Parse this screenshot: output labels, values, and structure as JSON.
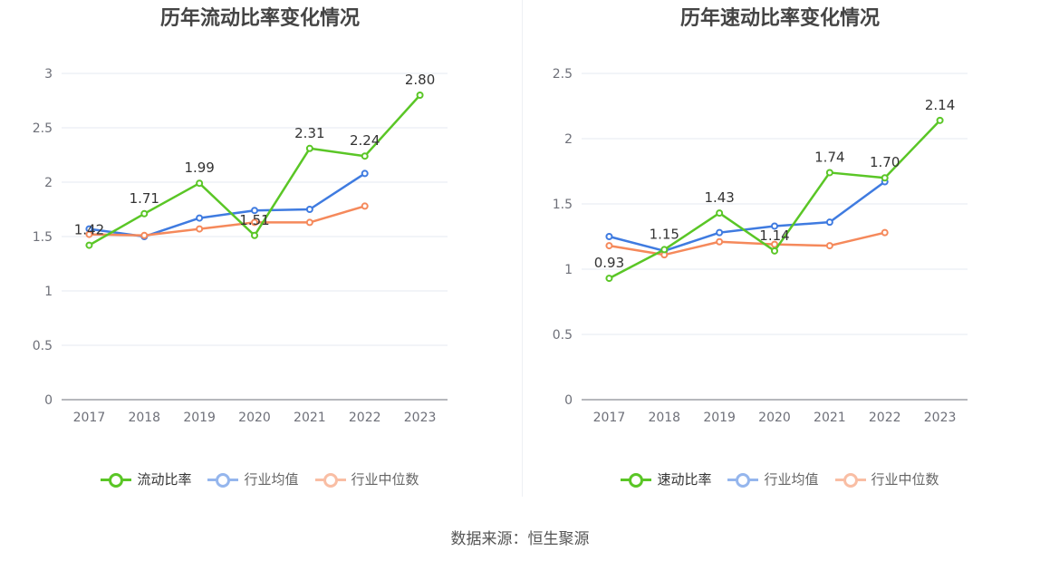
{
  "source_label": "数据来源：恒生聚源",
  "chart_data": [
    {
      "type": "line",
      "title": "历年流动比率变化情况",
      "x": [
        "2017",
        "2018",
        "2019",
        "2020",
        "2021",
        "2022",
        "2023"
      ],
      "ylim": [
        0,
        3
      ],
      "yticks": [
        0,
        0.5,
        1,
        1.5,
        2,
        2.5,
        3
      ],
      "grid": true,
      "legend_position": "bottom",
      "series": [
        {
          "name": "流动比率",
          "color": "#5ac626",
          "values": [
            1.42,
            1.71,
            1.99,
            1.51,
            2.31,
            2.24,
            2.8
          ],
          "labels": [
            "1.42",
            "1.71",
            "1.99",
            "1.51",
            "2.31",
            "2.24",
            "2.80"
          ]
        },
        {
          "name": "行业均值",
          "color": "#3f7be0",
          "values": [
            1.57,
            1.5,
            1.67,
            1.74,
            1.75,
            2.08,
            null
          ]
        },
        {
          "name": "行业中位数",
          "color": "#f5895b",
          "values": [
            1.52,
            1.51,
            1.57,
            1.63,
            1.63,
            1.78,
            null
          ]
        }
      ]
    },
    {
      "type": "line",
      "title": "历年速动比率变化情况",
      "x": [
        "2017",
        "2018",
        "2019",
        "2020",
        "2021",
        "2022",
        "2023"
      ],
      "ylim": [
        0,
        2.5
      ],
      "yticks": [
        0,
        0.5,
        1,
        1.5,
        2,
        2.5
      ],
      "grid": true,
      "legend_position": "bottom",
      "series": [
        {
          "name": "速动比率",
          "color": "#5ac626",
          "values": [
            0.93,
            1.15,
            1.43,
            1.14,
            1.74,
            1.7,
            2.14
          ],
          "labels": [
            "0.93",
            "1.15",
            "1.43",
            "1.14",
            "1.74",
            "1.70",
            "2.14"
          ]
        },
        {
          "name": "行业均值",
          "color": "#3f7be0",
          "values": [
            1.25,
            1.14,
            1.28,
            1.33,
            1.36,
            1.67,
            null
          ]
        },
        {
          "name": "行业中位数",
          "color": "#f5895b",
          "values": [
            1.18,
            1.11,
            1.21,
            1.19,
            1.18,
            1.28,
            null
          ]
        }
      ]
    }
  ]
}
